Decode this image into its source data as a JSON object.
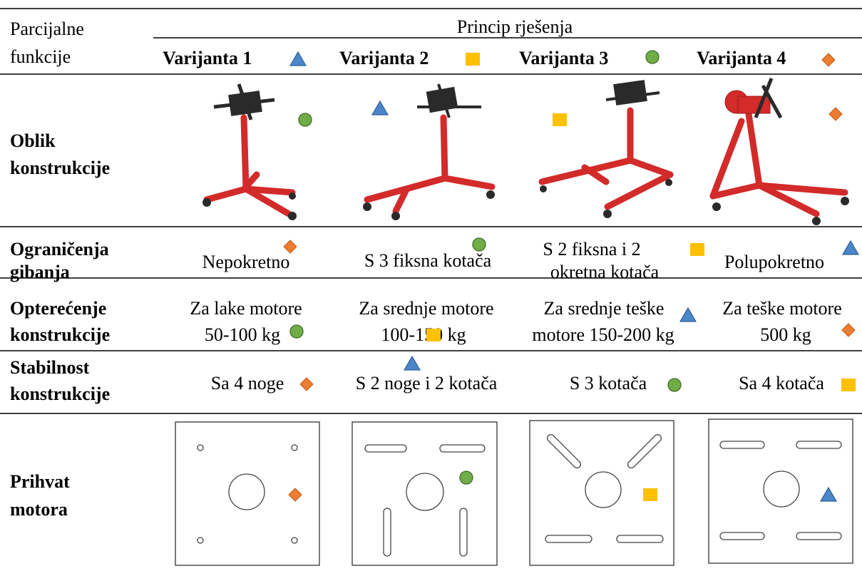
{
  "header": {
    "col1": [
      "Parcijalne",
      "funkcije"
    ],
    "title": "Princip rješenja",
    "variants": [
      "Varijanta 1",
      "Varijanta 2",
      "Varijanta 3",
      "Varijanta 4"
    ]
  },
  "rows": [
    {
      "label": [
        "Oblik",
        "konstrukcije"
      ]
    },
    {
      "label": [
        "Ograničenja",
        "gibanja"
      ],
      "cells": [
        [
          "Nepokretno"
        ],
        [
          "S 3 fiksna kotača"
        ],
        [
          "S 2 fiksna i 2",
          "okretna kotača"
        ],
        [
          "Polupokretno"
        ]
      ]
    },
    {
      "label": [
        "Opterećenje",
        "konstrukcije"
      ],
      "cells": [
        [
          "Za lake motore",
          "50-100 kg"
        ],
        [
          "Za srednje motore",
          "100-150 kg"
        ],
        [
          "Za srednje teške",
          "motore 150-200 kg"
        ],
        [
          "Za teške motore",
          "500 kg"
        ]
      ]
    },
    {
      "label": [
        "Stabilnost",
        "konstrukcije"
      ],
      "cells": [
        [
          "Sa 4 noge"
        ],
        [
          "S 2 noge i 2 kotača"
        ],
        [
          "S 3 kotača"
        ],
        [
          "Sa 4 kotača"
        ]
      ]
    },
    {
      "label": [
        "Prihvat",
        "motora"
      ]
    }
  ]
}
